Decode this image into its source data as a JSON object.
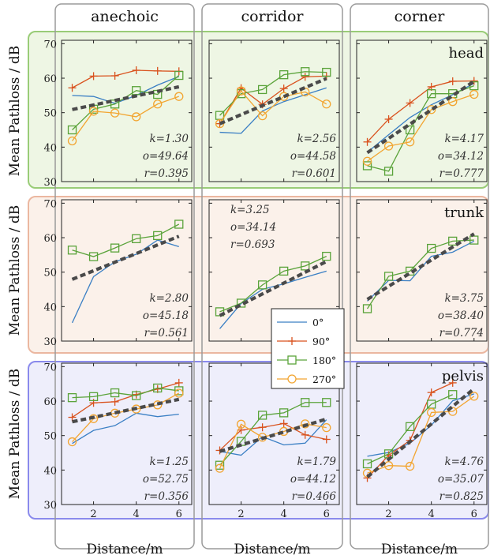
{
  "colors": {
    "s0": "#3a7fc4",
    "s90": "#d9521e",
    "s180": "#5aa33a",
    "s270": "#f2a531",
    "fit": "#4a4a4a",
    "head_bg": "#eef6e4",
    "head_border": "#99cc77",
    "head_label": "#6aac3c",
    "trunk_bg": "#fbf1ea",
    "trunk_border": "#ebb7a0",
    "trunk_label": "#d9521e",
    "pelvis_bg": "#eeeefb",
    "pelvis_border": "#8a8aec",
    "pelvis_label": "#2323d6",
    "column_frame": "#9a9a9a"
  },
  "columns": [
    {
      "title": "anechoic",
      "xlabel": "Distance/m"
    },
    {
      "title": "corridor",
      "xlabel": "Distance/m"
    },
    {
      "title": "corner",
      "xlabel": "Distance/m"
    }
  ],
  "rows": [
    {
      "label": "head",
      "ylabel": "Mean Pathloss / dB",
      "label_color_key": "head_label"
    },
    {
      "label": "trunk",
      "ylabel": "Mean Pathloss / dB",
      "label_color_key": "trunk_label"
    },
    {
      "label": "pelvis",
      "ylabel": "Mean Pathloss / dB",
      "label_color_key": "pelvis_label"
    }
  ],
  "legend": {
    "entries": [
      "0°",
      "90°",
      "180°",
      "270°"
    ],
    "markers": [
      "line",
      "plus",
      "square",
      "circle"
    ]
  },
  "chart_data": [
    {
      "type": "line",
      "column": "anechoic",
      "row": "head",
      "xlim": [
        0.5,
        6.6
      ],
      "ylim": [
        30,
        71
      ],
      "xticks": [
        2,
        4,
        6
      ],
      "yticks": [
        30,
        40,
        50,
        60,
        70
      ],
      "x": [
        1,
        2,
        3,
        4,
        5,
        6
      ],
      "series": [
        {
          "name": "0°",
          "values": [
            55,
            54.7,
            52.7,
            55,
            58,
            60.5
          ]
        },
        {
          "name": "90°",
          "values": [
            57.2,
            60.6,
            60.7,
            62.3,
            62.1,
            62
          ]
        },
        {
          "name": "180°",
          "values": [
            45,
            51,
            52.5,
            56.4,
            55.3,
            60.8
          ]
        },
        {
          "name": "270°",
          "values": [
            41.8,
            50.4,
            49.9,
            48.8,
            52.5,
            54.7
          ]
        }
      ],
      "fit": [
        50.9,
        57.5
      ],
      "stats": {
        "k": "k=1.30",
        "o": "o=49.64",
        "r": "r=0.395"
      }
    },
    {
      "type": "line",
      "column": "corridor",
      "row": "head",
      "xlim": [
        0.5,
        6.6
      ],
      "ylim": [
        30,
        71
      ],
      "xticks": [
        2,
        4,
        6
      ],
      "yticks": [
        30,
        40,
        50,
        60,
        70
      ],
      "x": [
        1,
        2,
        3,
        4,
        5,
        6
      ],
      "series": [
        {
          "name": "0°",
          "values": [
            44.3,
            44,
            50.5,
            53.2,
            55.2,
            57.2
          ]
        },
        {
          "name": "90°",
          "values": [
            46.8,
            57.1,
            52.4,
            57,
            60.4,
            60.6
          ]
        },
        {
          "name": "180°",
          "values": [
            49.2,
            55.5,
            56.7,
            61,
            61.9,
            61.7
          ]
        },
        {
          "name": "270°",
          "values": [
            46.8,
            56.3,
            49.1,
            54.7,
            56,
            52.5
          ]
        }
      ],
      "fit": [
        46.8,
        59.9
      ],
      "stats": {
        "k": "k=2.56",
        "o": "o=44.58",
        "r": "r=0.601"
      }
    },
    {
      "type": "line",
      "column": "corner",
      "row": "head",
      "xlim": [
        0.5,
        6.6
      ],
      "ylim": [
        30,
        71
      ],
      "xticks": [
        2,
        4,
        6
      ],
      "yticks": [
        30,
        40,
        50,
        60,
        70
      ],
      "x": [
        1,
        2,
        3,
        4,
        5,
        6
      ],
      "series": [
        {
          "name": "0°",
          "values": [
            38.5,
            43.6,
            48.6,
            52.3,
            55.2,
            58.5
          ]
        },
        {
          "name": "90°",
          "values": [
            41.5,
            48.1,
            52.8,
            57.5,
            59.1,
            59.2
          ]
        },
        {
          "name": "180°",
          "values": [
            34.6,
            33,
            45,
            55.5,
            55.5,
            57.8
          ]
        },
        {
          "name": "270°",
          "values": [
            35.9,
            40.3,
            41.5,
            50.9,
            53.2,
            55.3
          ]
        }
      ],
      "fit": [
        38.4,
        59.1
      ],
      "stats": {
        "k": "k=4.17",
        "o": "o=34.12",
        "r": "r=0.777"
      }
    },
    {
      "type": "line",
      "column": "anechoic",
      "row": "trunk",
      "xlim": [
        0.5,
        6.6
      ],
      "ylim": [
        30,
        71
      ],
      "xticks": [
        2,
        4,
        6
      ],
      "yticks": [
        30,
        40,
        50,
        60,
        70
      ],
      "x": [
        1,
        2,
        3,
        4,
        5,
        6
      ],
      "series": [
        {
          "name": "0°",
          "values": [
            35.3,
            48.7,
            53,
            55.2,
            59.3,
            57.4
          ]
        },
        {
          "name": "180°",
          "values": [
            56.4,
            54.5,
            57,
            59.7,
            60.6,
            63.9
          ]
        }
      ],
      "fit": [
        47.9,
        60.4
      ],
      "stats": {
        "k": "k=2.80",
        "o": "o=45.18",
        "r": "r=0.561"
      }
    },
    {
      "type": "line",
      "column": "corridor",
      "row": "trunk",
      "xlim": [
        0.5,
        6.6
      ],
      "ylim": [
        30,
        71
      ],
      "xticks": [
        2,
        4,
        6
      ],
      "yticks": [
        30,
        40,
        50,
        60,
        70
      ],
      "x": [
        1,
        2,
        3,
        4,
        5,
        6
      ],
      "series": [
        {
          "name": "0°",
          "values": [
            33.6,
            40.9,
            45,
            46.6,
            48.5,
            50.3
          ]
        },
        {
          "name": "180°",
          "values": [
            38.5,
            41,
            46.3,
            50.3,
            51.8,
            54.6
          ]
        }
      ],
      "fit": [
        37.4,
        53.1
      ],
      "stats": {
        "k": "k=3.25",
        "o": "o=34.14",
        "r": "r=0.693"
      }
    },
    {
      "type": "line",
      "column": "corner",
      "row": "trunk",
      "xlim": [
        0.5,
        6.6
      ],
      "ylim": [
        30,
        71
      ],
      "xticks": [
        2,
        4,
        6
      ],
      "yticks": [
        30,
        40,
        50,
        60,
        70
      ],
      "x": [
        1,
        2,
        3,
        4,
        5,
        6
      ],
      "series": [
        {
          "name": "0°",
          "values": [
            41.6,
            47.6,
            47.5,
            54.6,
            55.8,
            59
          ]
        },
        {
          "name": "180°",
          "values": [
            39.4,
            48.8,
            50.3,
            56.9,
            59,
            59.3
          ]
        }
      ],
      "fit": [
        42.1,
        61.1
      ],
      "stats": {
        "k": "k=3.75",
        "o": "o=38.40",
        "r": "r=0.774"
      }
    },
    {
      "type": "line",
      "column": "anechoic",
      "row": "pelvis",
      "xlim": [
        0.5,
        6.6
      ],
      "ylim": [
        30,
        71
      ],
      "xticks": [
        2,
        4,
        6
      ],
      "yticks": [
        30,
        40,
        50,
        60,
        70
      ],
      "x": [
        1,
        2,
        3,
        4,
        5,
        6
      ],
      "series": [
        {
          "name": "0°",
          "values": [
            47.7,
            51.5,
            52.9,
            56.5,
            55.5,
            56.2
          ]
        },
        {
          "name": "90°",
          "values": [
            55.3,
            59.5,
            59.8,
            61.9,
            63.5,
            65.3
          ]
        },
        {
          "name": "180°",
          "values": [
            61,
            61.3,
            62.4,
            61.6,
            63.8,
            63
          ]
        },
        {
          "name": "270°",
          "values": [
            48.2,
            54.9,
            56.5,
            57.7,
            58.9,
            62.3
          ]
        }
      ],
      "fit": [
        54,
        60.5
      ],
      "stats": {
        "k": "k=1.25",
        "o": "o=52.75",
        "r": "r=0.356"
      }
    },
    {
      "type": "line",
      "column": "corridor",
      "row": "pelvis",
      "xlim": [
        0.5,
        6.6
      ],
      "ylim": [
        30,
        71
      ],
      "xticks": [
        2,
        4,
        6
      ],
      "yticks": [
        30,
        40,
        50,
        60,
        70
      ],
      "x": [
        1,
        2,
        3,
        4,
        5,
        6
      ],
      "series": [
        {
          "name": "0°",
          "values": [
            45.4,
            44.3,
            49.7,
            47.3,
            47.8,
            54.6
          ]
        },
        {
          "name": "90°",
          "values": [
            45.7,
            51.6,
            52.4,
            53.5,
            50.2,
            48.9
          ]
        },
        {
          "name": "180°",
          "values": [
            41.4,
            48.3,
            55.9,
            56.6,
            59.6,
            59.6
          ]
        },
        {
          "name": "270°",
          "values": [
            40.5,
            53.3,
            49.5,
            51.2,
            53.4,
            52.3
          ]
        }
      ],
      "fit": [
        45.4,
        54.8
      ],
      "stats": {
        "k": "k=1.79",
        "o": "o=44.12",
        "r": "r=0.466"
      }
    },
    {
      "type": "line",
      "column": "corner",
      "row": "pelvis",
      "xlim": [
        0.5,
        6.6
      ],
      "ylim": [
        30,
        71
      ],
      "xticks": [
        2,
        4,
        6
      ],
      "yticks": [
        30,
        40,
        50,
        60,
        70
      ],
      "x": [
        1,
        2,
        3,
        4,
        5,
        6
      ],
      "series": [
        {
          "name": "0°",
          "values": [
            44,
            45.1,
            47.8,
            53,
            60.1,
            62.1
          ]
        },
        {
          "name": "90°",
          "values": [
            37.7,
            44.3,
            48.6,
            62.5,
            65.3,
            null
          ]
        },
        {
          "name": "180°",
          "values": [
            41.8,
            44.7,
            52.6,
            59.1,
            61.9,
            null
          ]
        },
        {
          "name": "270°",
          "values": [
            39.1,
            41.3,
            41.1,
            56.7,
            57,
            61.4
          ]
        }
      ],
      "fit": [
        38,
        63.6
      ],
      "stats": {
        "k": "k=4.76",
        "o": "o=35.07",
        "r": "r=0.825"
      }
    }
  ]
}
